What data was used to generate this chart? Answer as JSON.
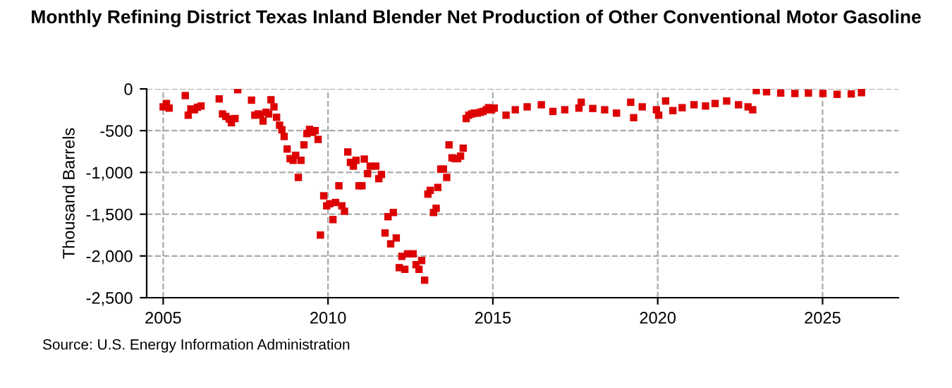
{
  "chart_data": {
    "type": "scatter",
    "title": "Monthly Refining District Texas Inland Blender Net Production of Other Conventional Motor Gasoline",
    "ylabel": "Thousand Barrels",
    "annotations": [
      "Source: U.S. Energy Information Administration"
    ],
    "series": [
      {
        "color": "#dd0000",
        "x": [
          2005.0,
          2005.1,
          2005.18,
          2005.67,
          2005.76,
          2005.84,
          2005.95,
          2006.04,
          2006.15,
          2006.7,
          2006.8,
          2006.9,
          2007.0,
          2007.07,
          2007.18,
          2007.26,
          2007.68,
          2007.78,
          2007.88,
          2007.95,
          2008.03,
          2008.12,
          2008.2,
          2008.27,
          2008.36,
          2008.44,
          2008.53,
          2008.6,
          2008.67,
          2008.76,
          2008.85,
          2008.94,
          2009.02,
          2009.1,
          2009.18,
          2009.27,
          2009.36,
          2009.44,
          2009.53,
          2009.61,
          2009.7,
          2009.77,
          2009.87,
          2009.96,
          2010.05,
          2010.15,
          2010.23,
          2010.33,
          2010.42,
          2010.5,
          2010.6,
          2010.68,
          2010.77,
          2010.85,
          2010.94,
          2011.03,
          2011.1,
          2011.2,
          2011.28,
          2011.45,
          2011.54,
          2011.62,
          2011.73,
          2011.82,
          2011.9,
          2011.98,
          2012.07,
          2012.16,
          2012.24,
          2012.33,
          2012.41,
          2012.58,
          2012.67,
          2012.76,
          2012.84,
          2012.93,
          2013.03,
          2013.1,
          2013.2,
          2013.28,
          2013.33,
          2013.42,
          2013.5,
          2013.6,
          2013.67,
          2013.76,
          2013.85,
          2013.93,
          2014.02,
          2014.1,
          2014.19,
          2014.27,
          2014.36,
          2014.44,
          2014.53,
          2014.62,
          2014.7,
          2014.8,
          2014.87,
          2014.96,
          2015.04,
          2015.4,
          2015.68,
          2016.04,
          2016.47,
          2016.82,
          2017.18,
          2017.61,
          2017.68,
          2018.03,
          2018.39,
          2018.75,
          2019.18,
          2019.27,
          2019.53,
          2019.96,
          2020.03,
          2020.24,
          2020.46,
          2020.74,
          2021.1,
          2021.45,
          2021.74,
          2022.09,
          2022.45,
          2022.74,
          2022.88,
          2022.99,
          2023.3,
          2023.73,
          2024.16,
          2024.57,
          2025.01,
          2025.44,
          2025.87,
          2026.18
        ],
        "values": [
          -215,
          -175,
          -230,
          -80,
          -315,
          -240,
          -250,
          -220,
          -205,
          -120,
          -300,
          -330,
          -360,
          -405,
          -355,
          -10,
          -135,
          -315,
          -300,
          -310,
          -385,
          -280,
          -300,
          -130,
          -215,
          -340,
          -435,
          -490,
          -570,
          -720,
          -835,
          -855,
          -795,
          -1060,
          -855,
          -670,
          -535,
          -485,
          -520,
          -500,
          -605,
          -1750,
          -1280,
          -1400,
          -1375,
          -1565,
          -1360,
          -1160,
          -1400,
          -1465,
          -755,
          -880,
          -925,
          -855,
          -1160,
          -1160,
          -840,
          -1015,
          -925,
          -925,
          -1075,
          -1025,
          -1725,
          -1530,
          -1855,
          -1480,
          -1785,
          -2140,
          -2005,
          -2160,
          -1975,
          -1975,
          -2105,
          -2160,
          -2055,
          -2290,
          -1260,
          -1215,
          -1480,
          -1430,
          -1180,
          -960,
          -960,
          -1060,
          -670,
          -825,
          -835,
          -835,
          -805,
          -710,
          -355,
          -315,
          -300,
          -290,
          -290,
          -280,
          -270,
          -250,
          -225,
          -250,
          -230,
          -315,
          -250,
          -215,
          -190,
          -270,
          -250,
          -230,
          -160,
          -235,
          -250,
          -290,
          -160,
          -345,
          -215,
          -250,
          -315,
          -145,
          -260,
          -225,
          -190,
          -205,
          -175,
          -145,
          -190,
          -215,
          -250,
          -20,
          -35,
          -50,
          -55,
          -50,
          -55,
          -65,
          -60,
          -45
        ]
      }
    ],
    "marker": "square",
    "xlim": [
      2004.5,
      2027.3
    ],
    "xticks": [
      2005,
      2010,
      2015,
      2020,
      2025
    ],
    "ylim": [
      -2500,
      0
    ],
    "yticks": [
      {
        "value": -2500,
        "label": "-2,500"
      },
      {
        "value": -2000,
        "label": "-2,000"
      },
      {
        "value": -1500,
        "label": "-1,500"
      },
      {
        "value": -1000,
        "label": "-1,000"
      },
      {
        "value": -500,
        "label": "-500"
      },
      0
    ],
    "grid": true
  }
}
